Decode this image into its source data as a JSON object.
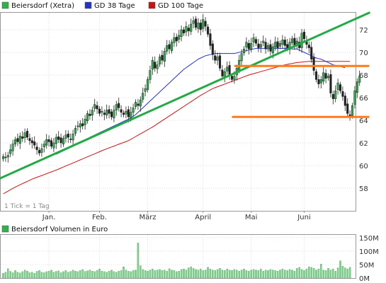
{
  "chart_data": [
    {
      "type": "candlestick",
      "legend": [
        {
          "name": "Beiersdorf (Xetra)",
          "color": "#2db34a"
        },
        {
          "name": "GD 38 Tage",
          "color": "#2233cc"
        },
        {
          "name": "GD 100 Tage",
          "color": "#cc1111"
        }
      ],
      "tick_note": "1 Tick = 1 Tag",
      "ylim": [
        56,
        73.5
      ],
      "yticks": [
        58,
        60,
        62,
        64,
        66,
        68,
        70,
        72
      ],
      "xticks": [
        {
          "label": "Jan.",
          "day": 19
        },
        {
          "label": "Feb.",
          "day": 40
        },
        {
          "label": "März",
          "day": 60
        },
        {
          "label": "April",
          "day": 83
        },
        {
          "label": "Mai",
          "day": 103
        },
        {
          "label": "Juni",
          "day": 125
        }
      ],
      "num_days": 145,
      "close": [
        60.8,
        60.7,
        60.9,
        61.4,
        61.9,
        62.3,
        62.1,
        62.6,
        62.4,
        62.9,
        62.5,
        62.2,
        62.0,
        61.8,
        61.4,
        61.1,
        61.5,
        61.9,
        62.3,
        62.1,
        61.7,
        62.0,
        62.5,
        62.3,
        62.0,
        62.4,
        62.7,
        62.5,
        62.3,
        62.8,
        63.3,
        63.5,
        63.7,
        63.5,
        64.1,
        64.6,
        64.4,
        64.9,
        65.4,
        65.0,
        64.6,
        64.8,
        64.5,
        64.9,
        64.6,
        64.3,
        64.9,
        65.4,
        65.1,
        64.7,
        64.5,
        64.8,
        64.3,
        64.7,
        65.1,
        65.6,
        65.3,
        65.8,
        66.4,
        66.8,
        67.6,
        68.4,
        69.3,
        68.6,
        68.9,
        69.6,
        69.3,
        70.1,
        70.6,
        70.3,
        70.9,
        71.3,
        71.0,
        71.5,
        72.0,
        71.7,
        72.3,
        71.9,
        72.5,
        72.8,
        72.2,
        72.6,
        72.0,
        72.9,
        72.3,
        71.6,
        70.6,
        69.8,
        69.3,
        69.6,
        68.6,
        67.9,
        68.3,
        68.7,
        68.0,
        67.6,
        67.9,
        68.6,
        69.3,
        69.9,
        70.3,
        70.9,
        70.3,
        70.8,
        71.3,
        70.8,
        70.4,
        70.7,
        71.0,
        70.3,
        70.6,
        70.1,
        70.5,
        70.9,
        70.4,
        70.8,
        71.1,
        70.6,
        70.4,
        70.9,
        71.2,
        70.6,
        71.0,
        70.4,
        71.7,
        71.2,
        70.7,
        70.4,
        69.4,
        68.4,
        67.6,
        67.2,
        67.6,
        68.2,
        67.7,
        67.9,
        66.4,
        65.9,
        66.6,
        67.3,
        66.6,
        66.1,
        65.3,
        64.6,
        64.4,
        65.3,
        66.6,
        67.4,
        67.9
      ],
      "gd38": [
        null,
        null,
        null,
        null,
        null,
        null,
        null,
        null,
        null,
        null,
        null,
        null,
        null,
        null,
        null,
        null,
        null,
        null,
        null,
        null,
        null,
        null,
        61.0,
        61.1,
        61.2,
        61.3,
        61.4,
        61.5,
        61.6,
        61.7,
        61.8,
        61.9,
        62.0,
        62.1,
        62.2,
        62.35,
        62.5,
        62.6,
        62.7,
        62.8,
        62.9,
        63.0,
        63.1,
        63.2,
        63.3,
        63.4,
        63.5,
        63.6,
        63.7,
        63.8,
        63.9,
        64.0,
        64.1,
        64.2,
        64.35,
        64.5,
        64.7,
        64.9,
        65.1,
        65.3,
        65.5,
        65.7,
        65.9,
        66.1,
        66.3,
        66.5,
        66.7,
        66.9,
        67.1,
        67.3,
        67.5,
        67.7,
        67.9,
        68.1,
        68.3,
        68.5,
        68.65,
        68.8,
        68.95,
        69.1,
        69.25,
        69.4,
        69.5,
        69.6,
        69.7,
        69.75,
        69.8,
        69.85,
        69.9,
        69.9,
        69.9,
        69.9,
        69.9,
        69.9,
        69.9,
        69.9,
        69.9,
        69.95,
        70.0,
        70.05,
        70.1,
        70.15,
        70.2,
        70.25,
        70.3,
        70.35,
        70.35,
        70.35,
        70.35,
        70.35,
        70.35,
        70.35,
        70.35,
        70.35,
        70.35,
        70.35,
        70.35,
        70.35,
        70.35,
        70.35,
        70.3,
        70.3,
        70.3,
        70.2,
        70.1,
        70.0,
        69.9,
        69.8,
        69.7,
        69.6,
        69.5,
        69.45,
        69.4,
        69.3,
        69.2,
        69.1,
        69.0,
        68.9,
        68.85,
        68.8,
        68.75,
        68.7,
        68.65
      ],
      "gd100": [
        57.5,
        57.62,
        57.74,
        57.86,
        57.98,
        58.1,
        58.2,
        58.3,
        58.4,
        58.5,
        58.6,
        58.7,
        58.8,
        58.88,
        58.96,
        59.04,
        59.12,
        59.2,
        59.28,
        59.36,
        59.44,
        59.52,
        59.6,
        59.69,
        59.78,
        59.87,
        59.96,
        60.05,
        60.14,
        60.23,
        60.32,
        60.41,
        60.5,
        60.59,
        60.68,
        60.77,
        60.86,
        60.95,
        61.04,
        61.13,
        61.22,
        61.31,
        61.4,
        61.48,
        61.56,
        61.64,
        61.72,
        61.8,
        61.88,
        61.96,
        62.04,
        62.12,
        62.2,
        62.32,
        62.44,
        62.56,
        62.68,
        62.8,
        62.92,
        63.04,
        63.16,
        63.28,
        63.4,
        63.54,
        63.68,
        63.82,
        63.96,
        64.1,
        64.24,
        64.38,
        64.52,
        64.66,
        64.8,
        64.94,
        65.08,
        65.22,
        65.36,
        65.5,
        65.64,
        65.78,
        65.92,
        66.06,
        66.2,
        66.32,
        66.44,
        66.56,
        66.68,
        66.8,
        66.88,
        66.96,
        67.04,
        67.12,
        67.2,
        67.28,
        67.36,
        67.44,
        67.52,
        67.6,
        67.68,
        67.76,
        67.84,
        67.92,
        68.0,
        68.06,
        68.12,
        68.18,
        68.24,
        68.3,
        68.36,
        68.42,
        68.48,
        68.54,
        68.6,
        68.66,
        68.72,
        68.78,
        68.84,
        68.9,
        68.94,
        68.98,
        69.02,
        69.06,
        69.1,
        69.12,
        69.14,
        69.16,
        69.18,
        69.2,
        69.2,
        69.2,
        69.2,
        69.2,
        69.2,
        69.2,
        69.2,
        69.2,
        69.2,
        69.2,
        69.2,
        69.2,
        69.2,
        69.2,
        69.2,
        69.2,
        69.2
      ],
      "annotations": [
        {
          "type": "trendline",
          "color": "#22aa44",
          "from": [
            -2,
            58.8
          ],
          "to": [
            152,
            73.5
          ]
        },
        {
          "type": "hline",
          "color": "#ff7a1a",
          "y": 68.8,
          "x": [
            96,
            152
          ]
        },
        {
          "type": "hline",
          "color": "#ff7a1a",
          "y": 64.3,
          "x": [
            95,
            152
          ]
        }
      ]
    },
    {
      "type": "bar",
      "legend": [
        {
          "name": "Beiersdorf Volumen in Euro",
          "color": "#2db34a"
        }
      ],
      "ylim": [
        0,
        160
      ],
      "yticks": [
        {
          "label": "0M",
          "value": 0
        },
        {
          "label": "50M",
          "value": 50
        },
        {
          "label": "100M",
          "value": 100
        },
        {
          "label": "150M",
          "value": 150
        }
      ],
      "values": [
        18,
        22,
        35,
        25,
        20,
        28,
        22,
        19,
        24,
        30,
        26,
        20,
        22,
        18,
        25,
        28,
        22,
        20,
        24,
        26,
        30,
        22,
        25,
        27,
        20,
        24,
        28,
        22,
        25,
        30,
        26,
        24,
        28,
        32,
        25,
        27,
        30,
        26,
        24,
        28,
        34,
        26,
        24,
        22,
        26,
        30,
        24,
        22,
        26,
        28,
        42,
        30,
        26,
        24,
        28,
        30,
        130,
        46,
        32,
        28,
        26,
        30,
        34,
        28,
        30,
        32,
        28,
        30,
        26,
        35,
        30,
        28,
        24,
        26,
        32,
        34,
        30,
        38,
        42,
        36,
        32,
        30,
        34,
        28,
        30,
        40,
        34,
        30,
        28,
        32,
        36,
        30,
        28,
        34,
        30,
        28,
        32,
        30,
        26,
        30,
        34,
        28,
        26,
        30,
        32,
        30,
        28,
        34,
        26,
        30,
        28,
        32,
        30,
        28,
        26,
        30,
        34,
        30,
        28,
        32,
        30,
        26,
        36,
        40,
        32,
        28,
        34,
        42,
        40,
        36,
        30,
        34,
        52,
        30,
        28,
        36,
        30,
        34,
        26,
        38,
        64,
        44,
        38,
        34,
        40
      ]
    }
  ]
}
